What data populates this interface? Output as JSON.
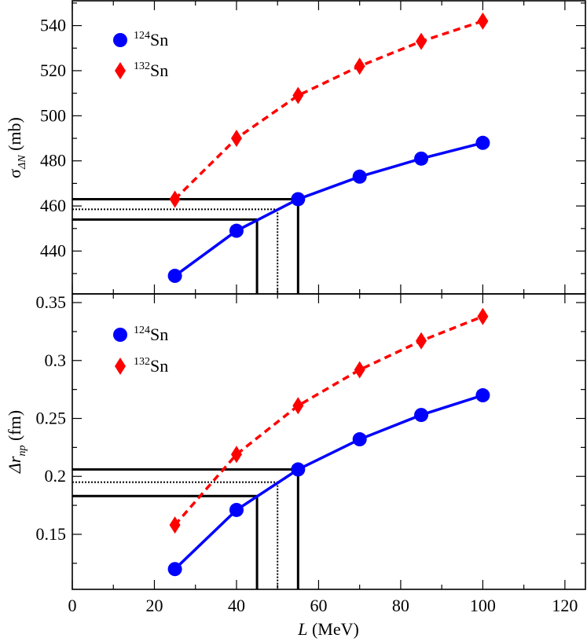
{
  "chart_data": [
    {
      "type": "line",
      "panel": "top",
      "ylabel": {
        "main": "σ",
        "sub": "ΔN",
        "unit": " (mb)"
      },
      "xlabel": "",
      "xlim": [
        0,
        125
      ],
      "ylim": [
        421,
        551
      ],
      "xticks": [
        0,
        20,
        40,
        60,
        80,
        100,
        120
      ],
      "yticks": [
        440,
        460,
        480,
        500,
        520,
        540
      ],
      "ytick_labels": [
        "440",
        "460",
        "480",
        "500",
        "520",
        "540"
      ],
      "series": [
        {
          "name": "124Sn",
          "mass": "124",
          "element": "Sn",
          "color": "#0000ff",
          "marker": "circle",
          "linestyle": "solid",
          "x": [
            25,
            40,
            55,
            70,
            85,
            100
          ],
          "y": [
            429,
            449,
            463,
            473,
            481,
            488
          ]
        },
        {
          "name": "132Sn",
          "mass": "132",
          "element": "Sn",
          "color": "#ff0000",
          "marker": "diamond",
          "linestyle": "dashed",
          "x": [
            25,
            40,
            55,
            70,
            85,
            100
          ],
          "y": [
            463,
            490,
            509,
            522,
            533,
            542
          ]
        }
      ],
      "guides": {
        "h_upper": 463,
        "h_lower": 454,
        "h_dotted": 458.5,
        "v_left": 45,
        "v_right": 55,
        "v_dotted": 50
      }
    },
    {
      "type": "line",
      "panel": "bottom",
      "ylabel": {
        "main": "Δr",
        "sub": "np",
        "unit": " (fm)"
      },
      "xlabel": "L (MeV)",
      "xlim": [
        0,
        125
      ],
      "ylim": [
        0.1025,
        0.3575
      ],
      "xticks": [
        0,
        20,
        40,
        60,
        80,
        100,
        120
      ],
      "xtick_labels": [
        "0",
        "20",
        "40",
        "60",
        "80",
        "100",
        "120"
      ],
      "yticks": [
        0.15,
        0.2,
        0.25,
        0.3,
        0.35
      ],
      "ytick_labels": [
        "0.15",
        "0.2",
        "0.25",
        "0.3",
        "0.35"
      ],
      "series": [
        {
          "name": "124Sn",
          "mass": "124",
          "element": "Sn",
          "color": "#0000ff",
          "marker": "circle",
          "linestyle": "solid",
          "x": [
            25,
            40,
            55,
            70,
            85,
            100
          ],
          "y": [
            0.12,
            0.171,
            0.206,
            0.232,
            0.253,
            0.27
          ]
        },
        {
          "name": "132Sn",
          "mass": "132",
          "element": "Sn",
          "color": "#ff0000",
          "marker": "diamond",
          "linestyle": "dashed",
          "x": [
            25,
            40,
            55,
            70,
            85,
            100
          ],
          "y": [
            0.158,
            0.219,
            0.261,
            0.292,
            0.317,
            0.338
          ]
        }
      ],
      "guides": {
        "h_upper": 0.206,
        "h_lower": 0.183,
        "h_dotted": 0.195,
        "v_left": 45,
        "v_right": 55,
        "v_dotted": 50
      }
    }
  ],
  "legend": {
    "entries": [
      {
        "mass": "124",
        "element": "Sn"
      },
      {
        "mass": "132",
        "element": "Sn"
      }
    ]
  },
  "xlabel": {
    "var": "L",
    "unit": " (MeV)"
  }
}
